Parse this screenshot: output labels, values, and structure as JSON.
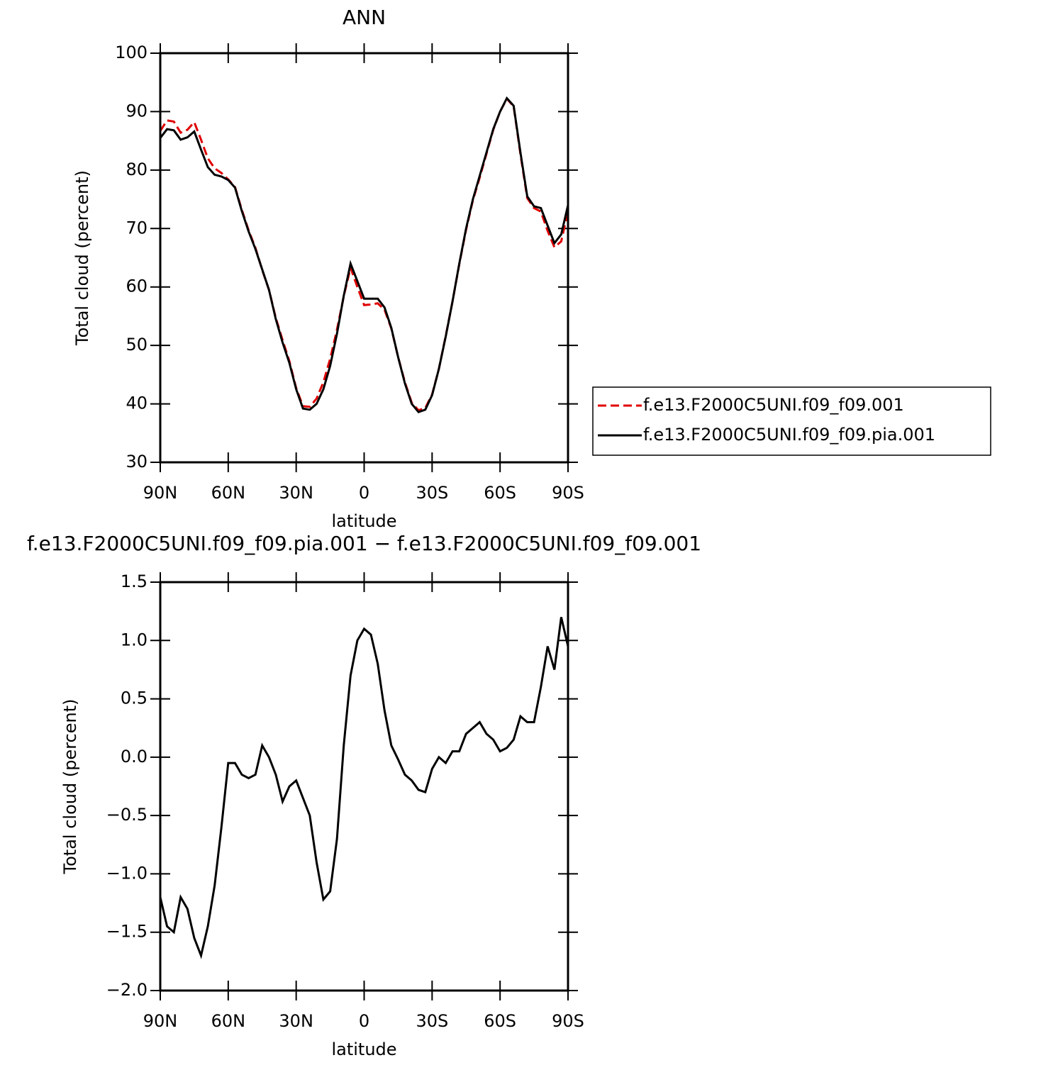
{
  "chart_data": [
    {
      "type": "line",
      "title": "ANN",
      "xlabel": "latitude",
      "ylabel": "Total cloud (percent)",
      "x": [
        90,
        87,
        84,
        81,
        78,
        75,
        72,
        69,
        66,
        63,
        60,
        57,
        54,
        51,
        48,
        45,
        42,
        39,
        36,
        33,
        30,
        27,
        24,
        21,
        18,
        15,
        12,
        9,
        6,
        3,
        0,
        -3,
        -6,
        -9,
        -12,
        -15,
        -18,
        -21,
        -24,
        -27,
        -30,
        -33,
        -36,
        -39,
        -42,
        -45,
        -48,
        -51,
        -54,
        -57,
        -60,
        -63,
        -66,
        -69,
        -72,
        -75,
        -78,
        -81,
        -84,
        -87,
        -90
      ],
      "series": [
        {
          "name": "f.e13.F2000C5UNI.f09_f09.001",
          "color": "#e00000",
          "linestyle": "dashed",
          "values": [
            86.7,
            88.5,
            88.3,
            86.4,
            86.9,
            88.2,
            85.2,
            82.0,
            80.3,
            79.5,
            78.4,
            77.1,
            73.2,
            69.7,
            66.7,
            62.9,
            59.5,
            54.7,
            50.9,
            47.3,
            42.7,
            39.6,
            39.5,
            40.9,
            43.7,
            47.7,
            52.7,
            58.4,
            63.3,
            60.0,
            56.9,
            57.0,
            57.2,
            56.1,
            52.9,
            48.0,
            43.7,
            40.2,
            38.9,
            39.3,
            41.6,
            46.0,
            51.6,
            57.5,
            63.9,
            69.8,
            74.8,
            78.7,
            82.8,
            86.9,
            90.0,
            92.2,
            90.9,
            82.7,
            75.2,
            73.5,
            72.9,
            69.6,
            66.8,
            67.8,
            73.0
          ]
        },
        {
          "name": "f.e13.F2000C5UNI.f09_f09.pia.001",
          "color": "#000000",
          "linestyle": "solid",
          "values": [
            85.5,
            87.0,
            86.8,
            85.2,
            85.6,
            86.6,
            83.5,
            80.5,
            79.2,
            78.9,
            78.3,
            77.0,
            73.0,
            69.5,
            66.5,
            63.0,
            59.5,
            54.5,
            50.5,
            47.0,
            42.5,
            39.2,
            39.0,
            40.0,
            42.5,
            46.5,
            52.0,
            58.5,
            64.0,
            61.0,
            58.0,
            58.0,
            58.0,
            56.5,
            53.0,
            48.0,
            43.5,
            40.0,
            38.6,
            39.0,
            41.5,
            46.0,
            51.5,
            57.5,
            64.0,
            70.0,
            75.0,
            79.0,
            83.0,
            87.0,
            90.0,
            92.3,
            91.0,
            83.0,
            75.5,
            73.8,
            73.5,
            70.5,
            67.5,
            69.0,
            74.0
          ]
        }
      ],
      "xlim": [
        90,
        -90
      ],
      "xticks": [
        {
          "value": 90,
          "label": "90N"
        },
        {
          "value": 60,
          "label": "60N"
        },
        {
          "value": 30,
          "label": "30N"
        },
        0,
        {
          "value": -30,
          "label": "30S"
        },
        {
          "value": -60,
          "label": "60S"
        },
        {
          "value": -90,
          "label": "90S"
        }
      ],
      "ylim": [
        30,
        100
      ],
      "yticks": [
        30,
        40,
        50,
        60,
        70,
        80,
        90,
        100
      ],
      "legend": "right"
    },
    {
      "type": "line",
      "title": "f.e13.F2000C5UNI.f09_f09.pia.001 − f.e13.F2000C5UNI.f09_f09.001",
      "xlabel": "latitude",
      "ylabel": "Total cloud (percent)",
      "x": [
        90,
        87,
        84,
        81,
        78,
        75,
        72,
        69,
        66,
        63,
        60,
        57,
        54,
        51,
        48,
        45,
        42,
        39,
        36,
        33,
        30,
        27,
        24,
        21,
        18,
        15,
        12,
        9,
        6,
        3,
        0,
        -3,
        -6,
        -9,
        -12,
        -15,
        -18,
        -21,
        -24,
        -27,
        -30,
        -33,
        -36,
        -39,
        -42,
        -45,
        -48,
        -51,
        -54,
        -57,
        -60,
        -63,
        -66,
        -69,
        -72,
        -75,
        -78,
        -81,
        -84,
        -87,
        -90
      ],
      "series": [
        {
          "color": "#000000",
          "linestyle": "solid",
          "values": [
            -1.2,
            -1.45,
            -1.5,
            -1.2,
            -1.3,
            -1.55,
            -1.7,
            -1.45,
            -1.1,
            -0.6,
            -0.05,
            -0.05,
            -0.15,
            -0.18,
            -0.15,
            0.1,
            0.0,
            -0.15,
            -0.38,
            -0.25,
            -0.2,
            -0.35,
            -0.5,
            -0.9,
            -1.22,
            -1.15,
            -0.7,
            0.1,
            0.7,
            1.0,
            1.1,
            1.05,
            0.8,
            0.4,
            0.1,
            -0.02,
            -0.15,
            -0.2,
            -0.28,
            -0.3,
            -0.1,
            0.0,
            -0.05,
            0.05,
            0.05,
            0.2,
            0.25,
            0.3,
            0.2,
            0.15,
            0.05,
            0.08,
            0.15,
            0.35,
            0.3,
            0.3,
            0.6,
            0.95,
            0.75,
            1.2,
            0.95
          ]
        }
      ],
      "xlim": [
        90,
        -90
      ],
      "xticks": [
        {
          "value": 90,
          "label": "90N"
        },
        {
          "value": 60,
          "label": "60N"
        },
        {
          "value": 30,
          "label": "30N"
        },
        0,
        {
          "value": -30,
          "label": "30S"
        },
        {
          "value": -60,
          "label": "60S"
        },
        {
          "value": -90,
          "label": "90S"
        }
      ],
      "ylim": [
        -2,
        1.5
      ],
      "yticks": [
        {
          "value": -2,
          "label": "−2.0"
        },
        {
          "value": -1.5,
          "label": "−1.5"
        },
        {
          "value": -1,
          "label": "−1.0"
        },
        {
          "value": -0.5,
          "label": "−0.5"
        },
        {
          "value": 0,
          "label": "0.0"
        },
        0.5,
        {
          "value": 1,
          "label": "1.0"
        },
        1.5
      ]
    }
  ]
}
